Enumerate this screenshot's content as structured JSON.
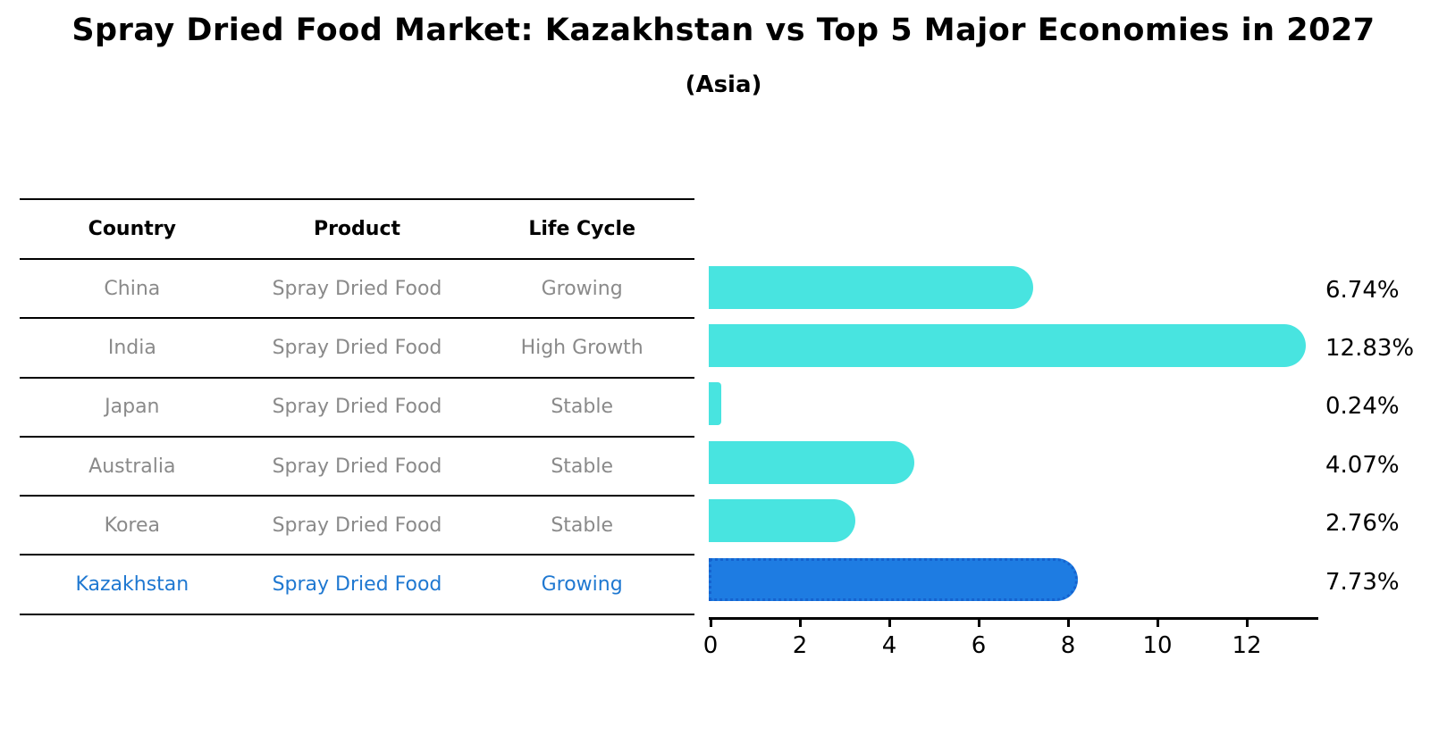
{
  "title": "Spray Dried Food Market: Kazakhstan vs Top 5 Major Economies in 2027",
  "subtitle": "(Asia)",
  "table": {
    "headers": [
      "Country",
      "Product",
      "Life Cycle"
    ],
    "rows": [
      {
        "country": "China",
        "product": "Spray Dried Food",
        "life_cycle": "Growing",
        "highlight": false
      },
      {
        "country": "India",
        "product": "Spray Dried Food",
        "life_cycle": "High Growth",
        "highlight": false
      },
      {
        "country": "Japan",
        "product": "Spray Dried Food",
        "life_cycle": "Stable",
        "highlight": false
      },
      {
        "country": "Australia",
        "product": "Spray Dried Food",
        "life_cycle": "Stable",
        "highlight": false
      },
      {
        "country": "Korea",
        "product": "Spray Dried Food",
        "life_cycle": "Stable",
        "highlight": false
      },
      {
        "country": "Kazakhstan",
        "product": "Spray Dried Food",
        "life_cycle": "Growing",
        "highlight": true
      }
    ]
  },
  "chart_data": {
    "type": "bar",
    "orientation": "horizontal",
    "title": "Spray Dried Food Market: Kazakhstan vs Top 5 Major Economies in 2027",
    "subtitle": "(Asia)",
    "categories": [
      "China",
      "India",
      "Japan",
      "Australia",
      "Korea",
      "Kazakhstan"
    ],
    "values": [
      6.74,
      12.83,
      0.24,
      4.07,
      2.76,
      7.73
    ],
    "value_labels": [
      "6.74%",
      "12.83%",
      "0.24%",
      "4.07%",
      "2.76%",
      "7.73%"
    ],
    "x_ticks": [
      0,
      2,
      4,
      6,
      8,
      10,
      12
    ],
    "xlim": [
      0,
      13.6
    ],
    "xlabel": "",
    "ylabel": "",
    "grid": false,
    "legend": false,
    "bar_color": "#48e4e0",
    "highlight_color": "#1e7ce2",
    "highlight_border_color": "#1563cf",
    "highlight_index": 5
  },
  "colors": {
    "table_text": "#8a8a8a",
    "highlight_text": "#1f78d1",
    "line": "#000000"
  }
}
